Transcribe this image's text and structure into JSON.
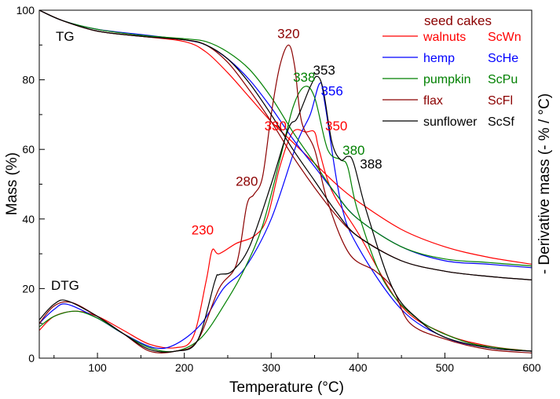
{
  "chart_data": {
    "type": "line",
    "xlabel": "Temperature (°C)",
    "ylabel_left": "Mass (%)",
    "ylabel_right": "- Derivative mass (- % / °C)",
    "xlim": [
      33,
      600
    ],
    "ylim": [
      0,
      100
    ],
    "xticks": [
      100,
      200,
      300,
      400,
      500,
      600
    ],
    "yticks": [
      0,
      20,
      40,
      60,
      80,
      100
    ],
    "grid": false,
    "legend_position": "top-right",
    "legend_title": "seed cakes",
    "curve_labels": {
      "tg": "TG",
      "dtg": "DTG"
    },
    "colors": {
      "legend_title": "#8b0000",
      "walnuts": "#ff0000",
      "hemp": "#0000ff",
      "pumpkin": "#008000",
      "flax": "#8b0000",
      "sunflower": "#000000"
    },
    "series": [
      {
        "key": "walnuts",
        "name": "walnuts",
        "code": "ScWn",
        "color": "#ff0000",
        "tg": [
          [
            33,
            100
          ],
          [
            60,
            97
          ],
          [
            100,
            94
          ],
          [
            150,
            92.5
          ],
          [
            200,
            91
          ],
          [
            225,
            88
          ],
          [
            250,
            82
          ],
          [
            275,
            75
          ],
          [
            300,
            68
          ],
          [
            325,
            62
          ],
          [
            350,
            56
          ],
          [
            375,
            50
          ],
          [
            400,
            45
          ],
          [
            450,
            37
          ],
          [
            500,
            32
          ],
          [
            550,
            29
          ],
          [
            600,
            27
          ]
        ],
        "dtg": [
          [
            33,
            8
          ],
          [
            50,
            12
          ],
          [
            75,
            13.5
          ],
          [
            100,
            12
          ],
          [
            130,
            8
          ],
          [
            160,
            4
          ],
          [
            190,
            3
          ],
          [
            210,
            6
          ],
          [
            225,
            22
          ],
          [
            232,
            31
          ],
          [
            240,
            30
          ],
          [
            260,
            33
          ],
          [
            280,
            35
          ],
          [
            295,
            40
          ],
          [
            310,
            55
          ],
          [
            325,
            65
          ],
          [
            340,
            65
          ],
          [
            350,
            65
          ],
          [
            355,
            60
          ],
          [
            370,
            48
          ],
          [
            400,
            36
          ],
          [
            450,
            15
          ],
          [
            500,
            7
          ],
          [
            550,
            3.5
          ],
          [
            600,
            2
          ]
        ]
      },
      {
        "key": "hemp",
        "name": "hemp",
        "code": "ScHe",
        "color": "#0000ff",
        "tg": [
          [
            33,
            100
          ],
          [
            60,
            97
          ],
          [
            100,
            94.5
          ],
          [
            150,
            93
          ],
          [
            200,
            91.5
          ],
          [
            225,
            90
          ],
          [
            250,
            86
          ],
          [
            275,
            80
          ],
          [
            300,
            72
          ],
          [
            325,
            63
          ],
          [
            350,
            55
          ],
          [
            375,
            47
          ],
          [
            400,
            40
          ],
          [
            450,
            32
          ],
          [
            500,
            28
          ],
          [
            550,
            27
          ],
          [
            600,
            26
          ]
        ],
        "dtg": [
          [
            33,
            10
          ],
          [
            50,
            14
          ],
          [
            65,
            15.5
          ],
          [
            100,
            11.5
          ],
          [
            130,
            7
          ],
          [
            165,
            3
          ],
          [
            190,
            4
          ],
          [
            220,
            10
          ],
          [
            245,
            20
          ],
          [
            270,
            26
          ],
          [
            300,
            40
          ],
          [
            330,
            62
          ],
          [
            345,
            70
          ],
          [
            356,
            79
          ],
          [
            362,
            73
          ],
          [
            380,
            45
          ],
          [
            400,
            32
          ],
          [
            450,
            14
          ],
          [
            500,
            6
          ],
          [
            550,
            3
          ],
          [
            600,
            2
          ]
        ]
      },
      {
        "key": "pumpkin",
        "name": "pumpkin",
        "code": "ScPu",
        "color": "#008000",
        "tg": [
          [
            33,
            100
          ],
          [
            60,
            97
          ],
          [
            100,
            94.5
          ],
          [
            150,
            92.8
          ],
          [
            200,
            91.8
          ],
          [
            225,
            91
          ],
          [
            250,
            88
          ],
          [
            275,
            83
          ],
          [
            300,
            75
          ],
          [
            325,
            65
          ],
          [
            350,
            56
          ],
          [
            375,
            47
          ],
          [
            400,
            40
          ],
          [
            450,
            32
          ],
          [
            500,
            28.5
          ],
          [
            550,
            27.5
          ],
          [
            600,
            26.5
          ]
        ],
        "dtg": [
          [
            33,
            9
          ],
          [
            50,
            12
          ],
          [
            75,
            13.5
          ],
          [
            100,
            11.5
          ],
          [
            130,
            7
          ],
          [
            160,
            3
          ],
          [
            190,
            2
          ],
          [
            220,
            6
          ],
          [
            250,
            17
          ],
          [
            270,
            26
          ],
          [
            290,
            38
          ],
          [
            310,
            57
          ],
          [
            325,
            72
          ],
          [
            338,
            78
          ],
          [
            350,
            75
          ],
          [
            365,
            60
          ],
          [
            380,
            57
          ],
          [
            388,
            55
          ],
          [
            400,
            42
          ],
          [
            430,
            22
          ],
          [
            470,
            11
          ],
          [
            520,
            5
          ],
          [
            560,
            3
          ],
          [
            600,
            2
          ]
        ]
      },
      {
        "key": "flax",
        "name": "flax",
        "code": "ScFl",
        "color": "#8b0000",
        "tg": [
          [
            33,
            100
          ],
          [
            60,
            97
          ],
          [
            100,
            94
          ],
          [
            150,
            92.5
          ],
          [
            200,
            91.5
          ],
          [
            225,
            90
          ],
          [
            250,
            85
          ],
          [
            275,
            77
          ],
          [
            300,
            68
          ],
          [
            325,
            58
          ],
          [
            350,
            49
          ],
          [
            375,
            41
          ],
          [
            400,
            35
          ],
          [
            450,
            28
          ],
          [
            500,
            25
          ],
          [
            550,
            23.5
          ],
          [
            600,
            22.5
          ]
        ],
        "dtg": [
          [
            33,
            10
          ],
          [
            50,
            15
          ],
          [
            70,
            16
          ],
          [
            100,
            12
          ],
          [
            130,
            7
          ],
          [
            160,
            2
          ],
          [
            190,
            2
          ],
          [
            215,
            5
          ],
          [
            240,
            20
          ],
          [
            260,
            27
          ],
          [
            272,
            44
          ],
          [
            280,
            47
          ],
          [
            290,
            52
          ],
          [
            300,
            70
          ],
          [
            310,
            84
          ],
          [
            320,
            90
          ],
          [
            327,
            84
          ],
          [
            335,
            68
          ],
          [
            350,
            60
          ],
          [
            365,
            45
          ],
          [
            390,
            30
          ],
          [
            420,
            25
          ],
          [
            440,
            20
          ],
          [
            460,
            10
          ],
          [
            500,
            5.5
          ],
          [
            550,
            2.5
          ],
          [
            600,
            1.5
          ]
        ]
      },
      {
        "key": "sunflower",
        "name": "sunflower",
        "code": "ScSf",
        "color": "#000000",
        "tg": [
          [
            33,
            100
          ],
          [
            60,
            97
          ],
          [
            100,
            94
          ],
          [
            150,
            92.5
          ],
          [
            200,
            91.5
          ],
          [
            225,
            90
          ],
          [
            250,
            86
          ],
          [
            275,
            79
          ],
          [
            300,
            70
          ],
          [
            325,
            60
          ],
          [
            350,
            51
          ],
          [
            375,
            42
          ],
          [
            400,
            35
          ],
          [
            450,
            28
          ],
          [
            500,
            25
          ],
          [
            550,
            23.5
          ],
          [
            600,
            22.5
          ]
        ],
        "dtg": [
          [
            33,
            11
          ],
          [
            50,
            15.5
          ],
          [
            65,
            16.5
          ],
          [
            100,
            12
          ],
          [
            130,
            7
          ],
          [
            160,
            2.5
          ],
          [
            190,
            2
          ],
          [
            215,
            5
          ],
          [
            235,
            22
          ],
          [
            240,
            24
          ],
          [
            255,
            25
          ],
          [
            275,
            32
          ],
          [
            300,
            50
          ],
          [
            320,
            66
          ],
          [
            330,
            69
          ],
          [
            345,
            78
          ],
          [
            353,
            81
          ],
          [
            360,
            77
          ],
          [
            370,
            62
          ],
          [
            380,
            57
          ],
          [
            388,
            58
          ],
          [
            395,
            56
          ],
          [
            410,
            42
          ],
          [
            440,
            20
          ],
          [
            470,
            11
          ],
          [
            500,
            6
          ],
          [
            550,
            3
          ],
          [
            600,
            2
          ]
        ]
      }
    ],
    "annotations": [
      {
        "text": "320",
        "x": 320,
        "y": 92,
        "color": "#8b0000",
        "anchor": "middle"
      },
      {
        "text": "338",
        "x": 338,
        "y": 79.5,
        "color": "#008000",
        "anchor": "middle"
      },
      {
        "text": "353",
        "x": 361,
        "y": 81.5,
        "color": "#000000",
        "anchor": "middle"
      },
      {
        "text": "356",
        "x": 370,
        "y": 75.5,
        "color": "#0000ff",
        "anchor": "middle"
      },
      {
        "text": "330",
        "x": 305,
        "y": 65.5,
        "color": "#ff0000",
        "anchor": "middle"
      },
      {
        "text": "350",
        "x": 375,
        "y": 65.5,
        "color": "#ff0000",
        "anchor": "middle"
      },
      {
        "text": "380",
        "x": 395,
        "y": 58.5,
        "color": "#008000",
        "anchor": "middle"
      },
      {
        "text": "388",
        "x": 415,
        "y": 54.5,
        "color": "#000000",
        "anchor": "middle"
      },
      {
        "text": "280",
        "x": 272,
        "y": 49.5,
        "color": "#8b0000",
        "anchor": "middle"
      },
      {
        "text": "230",
        "x": 221,
        "y": 35.5,
        "color": "#ff0000",
        "anchor": "middle"
      }
    ]
  }
}
